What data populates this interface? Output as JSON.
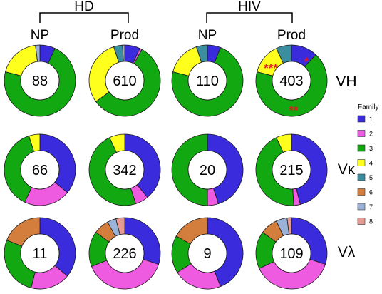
{
  "chart_data": {
    "type": "donut-grid",
    "group_headers": [
      "HD",
      "HIV"
    ],
    "columns": [
      "NP",
      "Prod",
      "NP",
      "Prod"
    ],
    "rows": [
      "VH",
      "Vκ",
      "Vλ"
    ],
    "legend": {
      "title": "Family",
      "families": [
        {
          "label": "1",
          "color": "#3a2bdc"
        },
        {
          "label": "2",
          "color": "#ee5ae0"
        },
        {
          "label": "3",
          "color": "#12a812"
        },
        {
          "label": "4",
          "color": "#ffff1e"
        },
        {
          "label": "5",
          "color": "#3a8ea0"
        },
        {
          "label": "6",
          "color": "#d47e3e"
        },
        {
          "label": "7",
          "color": "#9bb2d8"
        },
        {
          "label": "8",
          "color": "#e69a92"
        }
      ]
    },
    "donuts": [
      {
        "row": "VH",
        "column": "NP",
        "group": "HD",
        "n": "88",
        "fractions": [
          0.07,
          0,
          0.72,
          0.19,
          0,
          0,
          0.02,
          0
        ]
      },
      {
        "row": "VH",
        "column": "Prod",
        "group": "HD",
        "n": "610",
        "fractions": [
          0.07,
          0.01,
          0.57,
          0.3,
          0.04,
          0,
          0.01,
          0
        ]
      },
      {
        "row": "VH",
        "column": "NP",
        "group": "HIV",
        "n": "110",
        "fractions": [
          0.06,
          0,
          0.73,
          0.16,
          0.05,
          0,
          0,
          0
        ]
      },
      {
        "row": "VH",
        "column": "Prod",
        "group": "HIV",
        "n": "403",
        "fractions": [
          0.12,
          0,
          0.67,
          0.14,
          0.07,
          0,
          0,
          0
        ]
      },
      {
        "row": "Vκ",
        "column": "NP",
        "group": "HD",
        "n": "66",
        "fractions": [
          0.36,
          0.21,
          0.38,
          0.05,
          0,
          0,
          0,
          0
        ]
      },
      {
        "row": "Vκ",
        "column": "Prod",
        "group": "HD",
        "n": "342",
        "fractions": [
          0.39,
          0.06,
          0.48,
          0.07,
          0,
          0,
          0,
          0
        ]
      },
      {
        "row": "Vκ",
        "column": "NP",
        "group": "HIV",
        "n": "20",
        "fractions": [
          0.45,
          0.05,
          0.5,
          0,
          0,
          0,
          0,
          0
        ]
      },
      {
        "row": "Vκ",
        "column": "Prod",
        "group": "HIV",
        "n": "215",
        "fractions": [
          0.46,
          0.03,
          0.44,
          0.07,
          0,
          0,
          0,
          0
        ]
      },
      {
        "row": "Vλ",
        "column": "NP",
        "group": "HD",
        "n": "11",
        "fractions": [
          0.36,
          0.18,
          0.27,
          0,
          0,
          0.19,
          0,
          0
        ]
      },
      {
        "row": "Vλ",
        "column": "Prod",
        "group": "HD",
        "n": "226",
        "fractions": [
          0.3,
          0.39,
          0.16,
          0,
          0,
          0.07,
          0.04,
          0.04
        ]
      },
      {
        "row": "Vλ",
        "column": "NP",
        "group": "HIV",
        "n": "9",
        "fractions": [
          0.44,
          0.22,
          0.17,
          0,
          0,
          0.17,
          0,
          0
        ]
      },
      {
        "row": "Vλ",
        "column": "Prod",
        "group": "HIV",
        "n": "109",
        "fractions": [
          0.3,
          0.38,
          0.17,
          0,
          0,
          0.08,
          0.05,
          0.02
        ]
      }
    ],
    "annotations": [
      {
        "donut": 3,
        "text": "*",
        "color": "#e8141e"
      },
      {
        "donut": 3,
        "text": "***",
        "color": "#e8141e"
      },
      {
        "donut": 3,
        "text": "**",
        "color": "#e8141e"
      }
    ]
  }
}
